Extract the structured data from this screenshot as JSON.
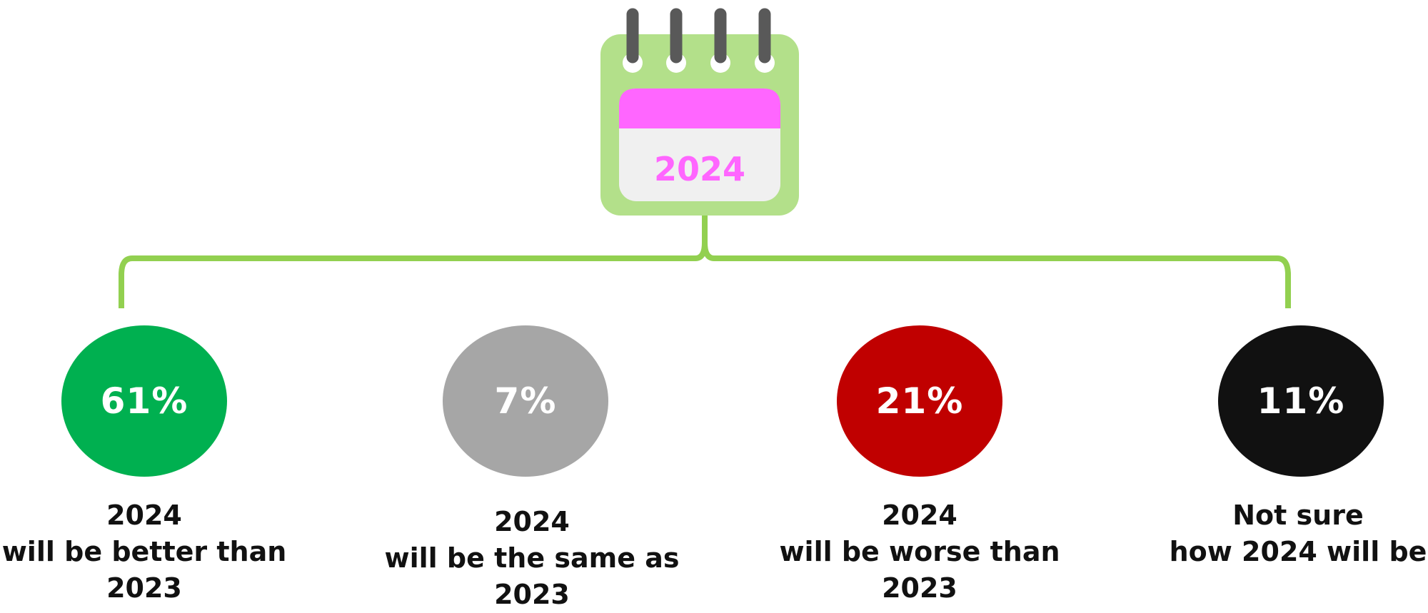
{
  "calendar": {
    "year": "2024",
    "icon": "calendar-icon",
    "colors": {
      "frame": "#b3e08a",
      "header": "#ff66ff",
      "page": "#f0f0f0",
      "rings": "#595959",
      "year_text": "#ff66ff"
    }
  },
  "connector_color": "#92d050",
  "outcomes": [
    {
      "value": "61%",
      "color": "#00b050",
      "label_lines": [
        "2024",
        "will be better than",
        "2023"
      ]
    },
    {
      "value": "7%",
      "color": "#a6a6a6",
      "label_lines": [
        "2024",
        "will be the same as",
        "2023"
      ]
    },
    {
      "value": "21%",
      "color": "#c00000",
      "label_lines": [
        "2024",
        "will be worse than",
        "2023"
      ]
    },
    {
      "value": "11%",
      "color": "#111111",
      "label_lines": [
        "Not sure",
        "how 2024 will be"
      ]
    }
  ]
}
